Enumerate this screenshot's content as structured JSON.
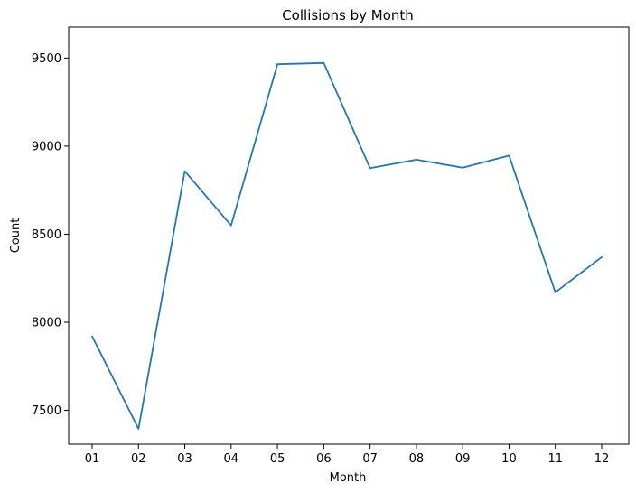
{
  "chart_data": {
    "type": "line",
    "title": "Collisions by Month",
    "xlabel": "Month",
    "ylabel": "Count",
    "categories": [
      "01",
      "02",
      "03",
      "04",
      "05",
      "06",
      "07",
      "08",
      "09",
      "10",
      "11",
      "12"
    ],
    "series": [
      {
        "values": [
          7920,
          7395,
          8858,
          8550,
          9465,
          9472,
          8875,
          8923,
          8878,
          8946,
          8170,
          8370
        ],
        "color": "#1f77b4"
      }
    ],
    "yticks": [
      7500,
      8000,
      8500,
      9000,
      9500
    ],
    "ylim": [
      7308,
      9676
    ],
    "grid": false,
    "legend": "none"
  }
}
